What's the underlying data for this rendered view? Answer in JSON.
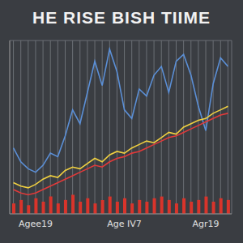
{
  "chart_data": {
    "type": "line",
    "title": "HE RISE BISH TIIME",
    "categories": [
      null,
      null,
      null,
      "Agee19",
      null,
      null,
      null,
      null,
      null,
      null,
      null,
      null,
      null,
      null,
      null,
      "Age IV7",
      null,
      null,
      null,
      null,
      null,
      null,
      null,
      null,
      null,
      null,
      "Agr19",
      null,
      null,
      null
    ],
    "series": [
      {
        "color": "#5b8fd6",
        "type": "line",
        "values": [
          38,
          30,
          26,
          24,
          28,
          35,
          33,
          45,
          60,
          52,
          70,
          88,
          74,
          95,
          82,
          60,
          55,
          72,
          68,
          80,
          85,
          70,
          88,
          92,
          80,
          62,
          48,
          75,
          90,
          85
        ]
      },
      {
        "color": "#e03a3a",
        "type": "line",
        "values": [
          14,
          12,
          11,
          12,
          14,
          16,
          18,
          20,
          22,
          24,
          26,
          28,
          27,
          30,
          32,
          33,
          35,
          36,
          38,
          40,
          42,
          44,
          45,
          47,
          49,
          51,
          53,
          55,
          57,
          58
        ]
      },
      {
        "color": "#f0d040",
        "type": "line",
        "values": [
          18,
          16,
          15,
          17,
          20,
          22,
          21,
          25,
          27,
          26,
          29,
          32,
          30,
          34,
          36,
          35,
          38,
          40,
          42,
          41,
          44,
          47,
          46,
          50,
          52,
          54,
          55,
          58,
          60,
          62
        ]
      },
      {
        "color": "#d9342b",
        "type": "bar",
        "values": [
          6,
          8,
          5,
          9,
          7,
          10,
          6,
          8,
          11,
          7,
          9,
          6,
          8,
          10,
          7,
          9,
          6,
          8,
          7,
          9,
          10,
          8,
          6,
          9,
          7,
          8,
          10,
          7,
          9,
          8
        ]
      }
    ],
    "ylim": [
      0,
      100
    ],
    "yticks": [
      0,
      20,
      40,
      60,
      80,
      100
    ],
    "grid": true,
    "tick_labels": "x"
  }
}
